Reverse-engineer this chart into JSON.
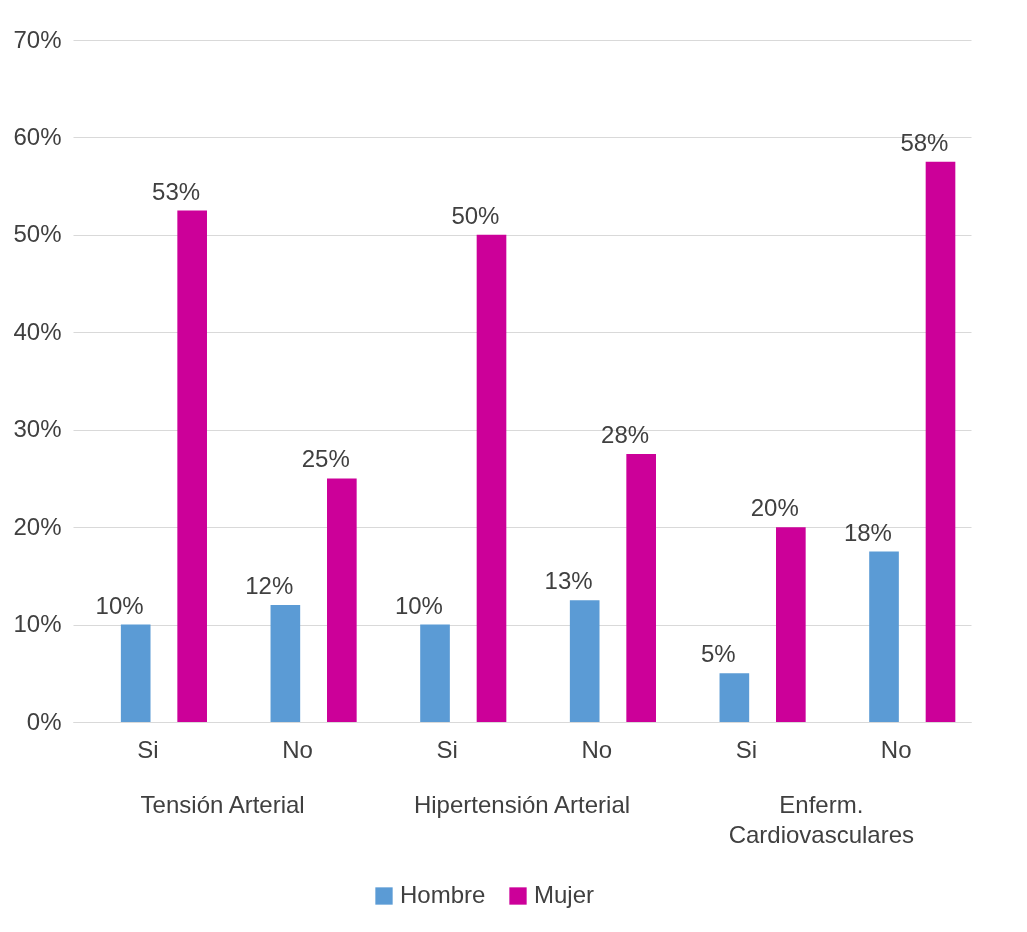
{
  "chart_data": {
    "type": "bar",
    "categories": [
      "Si",
      "No",
      "Si",
      "No",
      "Si",
      "No"
    ],
    "annotations": [
      "Tensión Arterial",
      "Hipertensión Arterial",
      "Enferm. Cardiovasculares"
    ],
    "series": [
      {
        "name": "Hombre",
        "color": "#5b9bd5",
        "values": [
          10,
          12,
          10,
          12.5,
          5,
          17.5
        ],
        "value_labels": [
          "10%",
          "12%",
          "10%",
          "13%",
          "5%",
          "18%"
        ]
      },
      {
        "name": "Mujer",
        "color": "#cc0099",
        "values": [
          52.5,
          25,
          50,
          27.5,
          20,
          57.5
        ],
        "value_labels": [
          "53%",
          "25%",
          "50%",
          "28%",
          "20%",
          "58%"
        ]
      }
    ],
    "ylim": [
      0,
      70
    ],
    "yticks": [
      {
        "value": 0,
        "label": "0%"
      },
      {
        "value": 10,
        "label": "10%"
      },
      {
        "value": 20,
        "label": "20%"
      },
      {
        "value": 30,
        "label": "30%"
      },
      {
        "value": 40,
        "label": "40%"
      },
      {
        "value": 50,
        "label": "50%"
      },
      {
        "value": 60,
        "label": "60%"
      },
      {
        "value": 70,
        "label": "70%"
      }
    ],
    "grid": "y",
    "legend": "bottom"
  }
}
